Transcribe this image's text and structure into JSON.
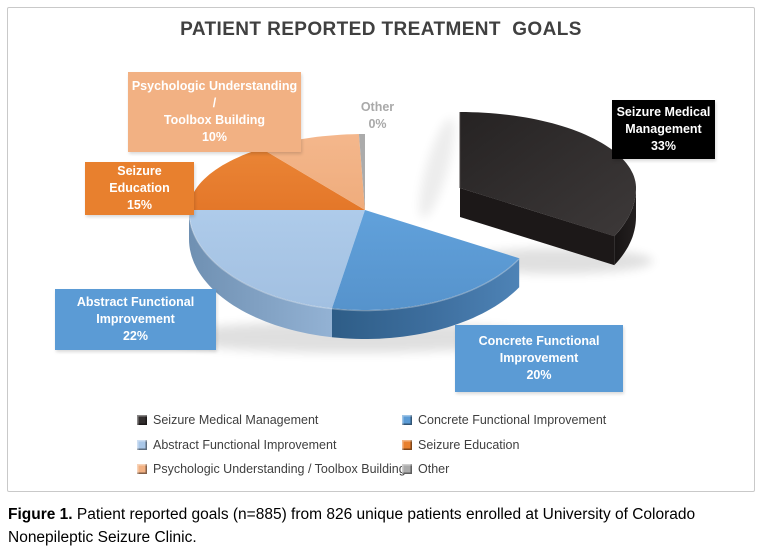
{
  "chart_data": {
    "type": "pie",
    "style": "3d-exploded-pie",
    "title": "PATIENT REPORTED TREATMENT  GOALS",
    "legend": {
      "position": "bottom",
      "columns": 2
    },
    "slices": [
      {
        "id": "seizure-medical-management",
        "label": "Seizure Medical Management",
        "value_pct": 33,
        "color": "#332F2F",
        "exploded": true,
        "callout_lines": [
          "Seizure Medical",
          "Management",
          "33%"
        ],
        "callout_bg": "#000000",
        "callout_text_color": "#FFFFFF"
      },
      {
        "id": "concrete-functional-improvement",
        "label": "Concrete Functional Improvement",
        "value_pct": 20,
        "color": "#5B9BD5",
        "exploded": false,
        "callout_lines": [
          "Concrete Functional",
          "Improvement",
          "20%"
        ],
        "callout_bg": "#5B9BD5",
        "callout_text_color": "#FFFFFF"
      },
      {
        "id": "abstract-functional-improvement",
        "label": "Abstract Functional Improvement",
        "value_pct": 22,
        "color": "#A9C7E8",
        "exploded": false,
        "callout_lines": [
          "Abstract Functional",
          "Improvement",
          "22%"
        ],
        "callout_bg": "#5B9BD5",
        "callout_text_color": "#FFFFFF"
      },
      {
        "id": "seizure-education",
        "label": "Seizure Education",
        "value_pct": 15,
        "color": "#E8802E",
        "exploded": false,
        "callout_lines": [
          "Seizure Education",
          "15%"
        ],
        "callout_bg": "#E8802E",
        "callout_text_color": "#FFFFFF"
      },
      {
        "id": "psychologic-understanding-toolbox-building",
        "label": "Psychologic Understanding / Toolbox Building",
        "value_pct": 10,
        "color": "#F2B183",
        "exploded": false,
        "callout_lines": [
          "Psychologic Understanding /",
          "Toolbox Building",
          "10%"
        ],
        "callout_bg": "#F2B183",
        "callout_text_color": "#FFFFFF"
      },
      {
        "id": "other",
        "label": "Other",
        "value_pct": 0,
        "color": "#ABABAB",
        "exploded": false,
        "callout_lines": [
          "Other",
          "0%"
        ],
        "callout_bg": "transparent",
        "callout_text_color": "#A9A9A9"
      }
    ]
  },
  "figure": {
    "caption_prefix": "Figure 1.",
    "caption_text": " Patient reported goals (n=885) from 826 unique patients enrolled at University of Colorado Nonepileptic Seizure Clinic."
  }
}
